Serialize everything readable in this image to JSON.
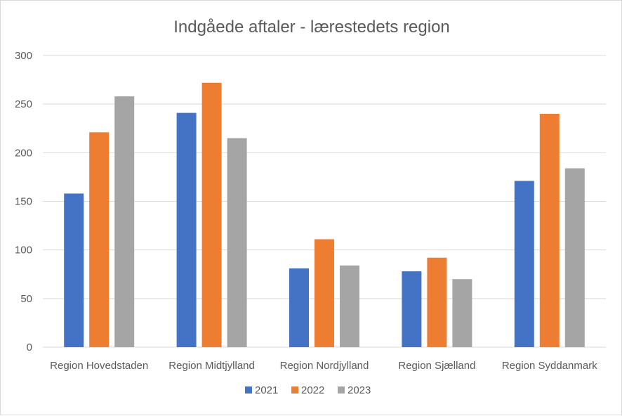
{
  "chart_data": {
    "type": "bar",
    "title": "Indgåede aftaler  -  lærestedets region",
    "categories": [
      "Region Hovedstaden",
      "Region Midtjylland",
      "Region Nordjylland",
      "Region Sjælland",
      "Region Syddanmark"
    ],
    "series": [
      {
        "name": "2021",
        "color": "#4472c4",
        "values": [
          158,
          241,
          81,
          78,
          171
        ]
      },
      {
        "name": "2022",
        "color": "#ed7d31",
        "values": [
          221,
          272,
          111,
          92,
          240
        ]
      },
      {
        "name": "2023",
        "color": "#a5a5a5",
        "values": [
          258,
          215,
          84,
          70,
          184
        ]
      }
    ],
    "ylim": [
      0,
      300
    ],
    "yticks": [
      0,
      50,
      100,
      150,
      200,
      250,
      300
    ],
    "grid": true,
    "legend_position": "bottom"
  }
}
